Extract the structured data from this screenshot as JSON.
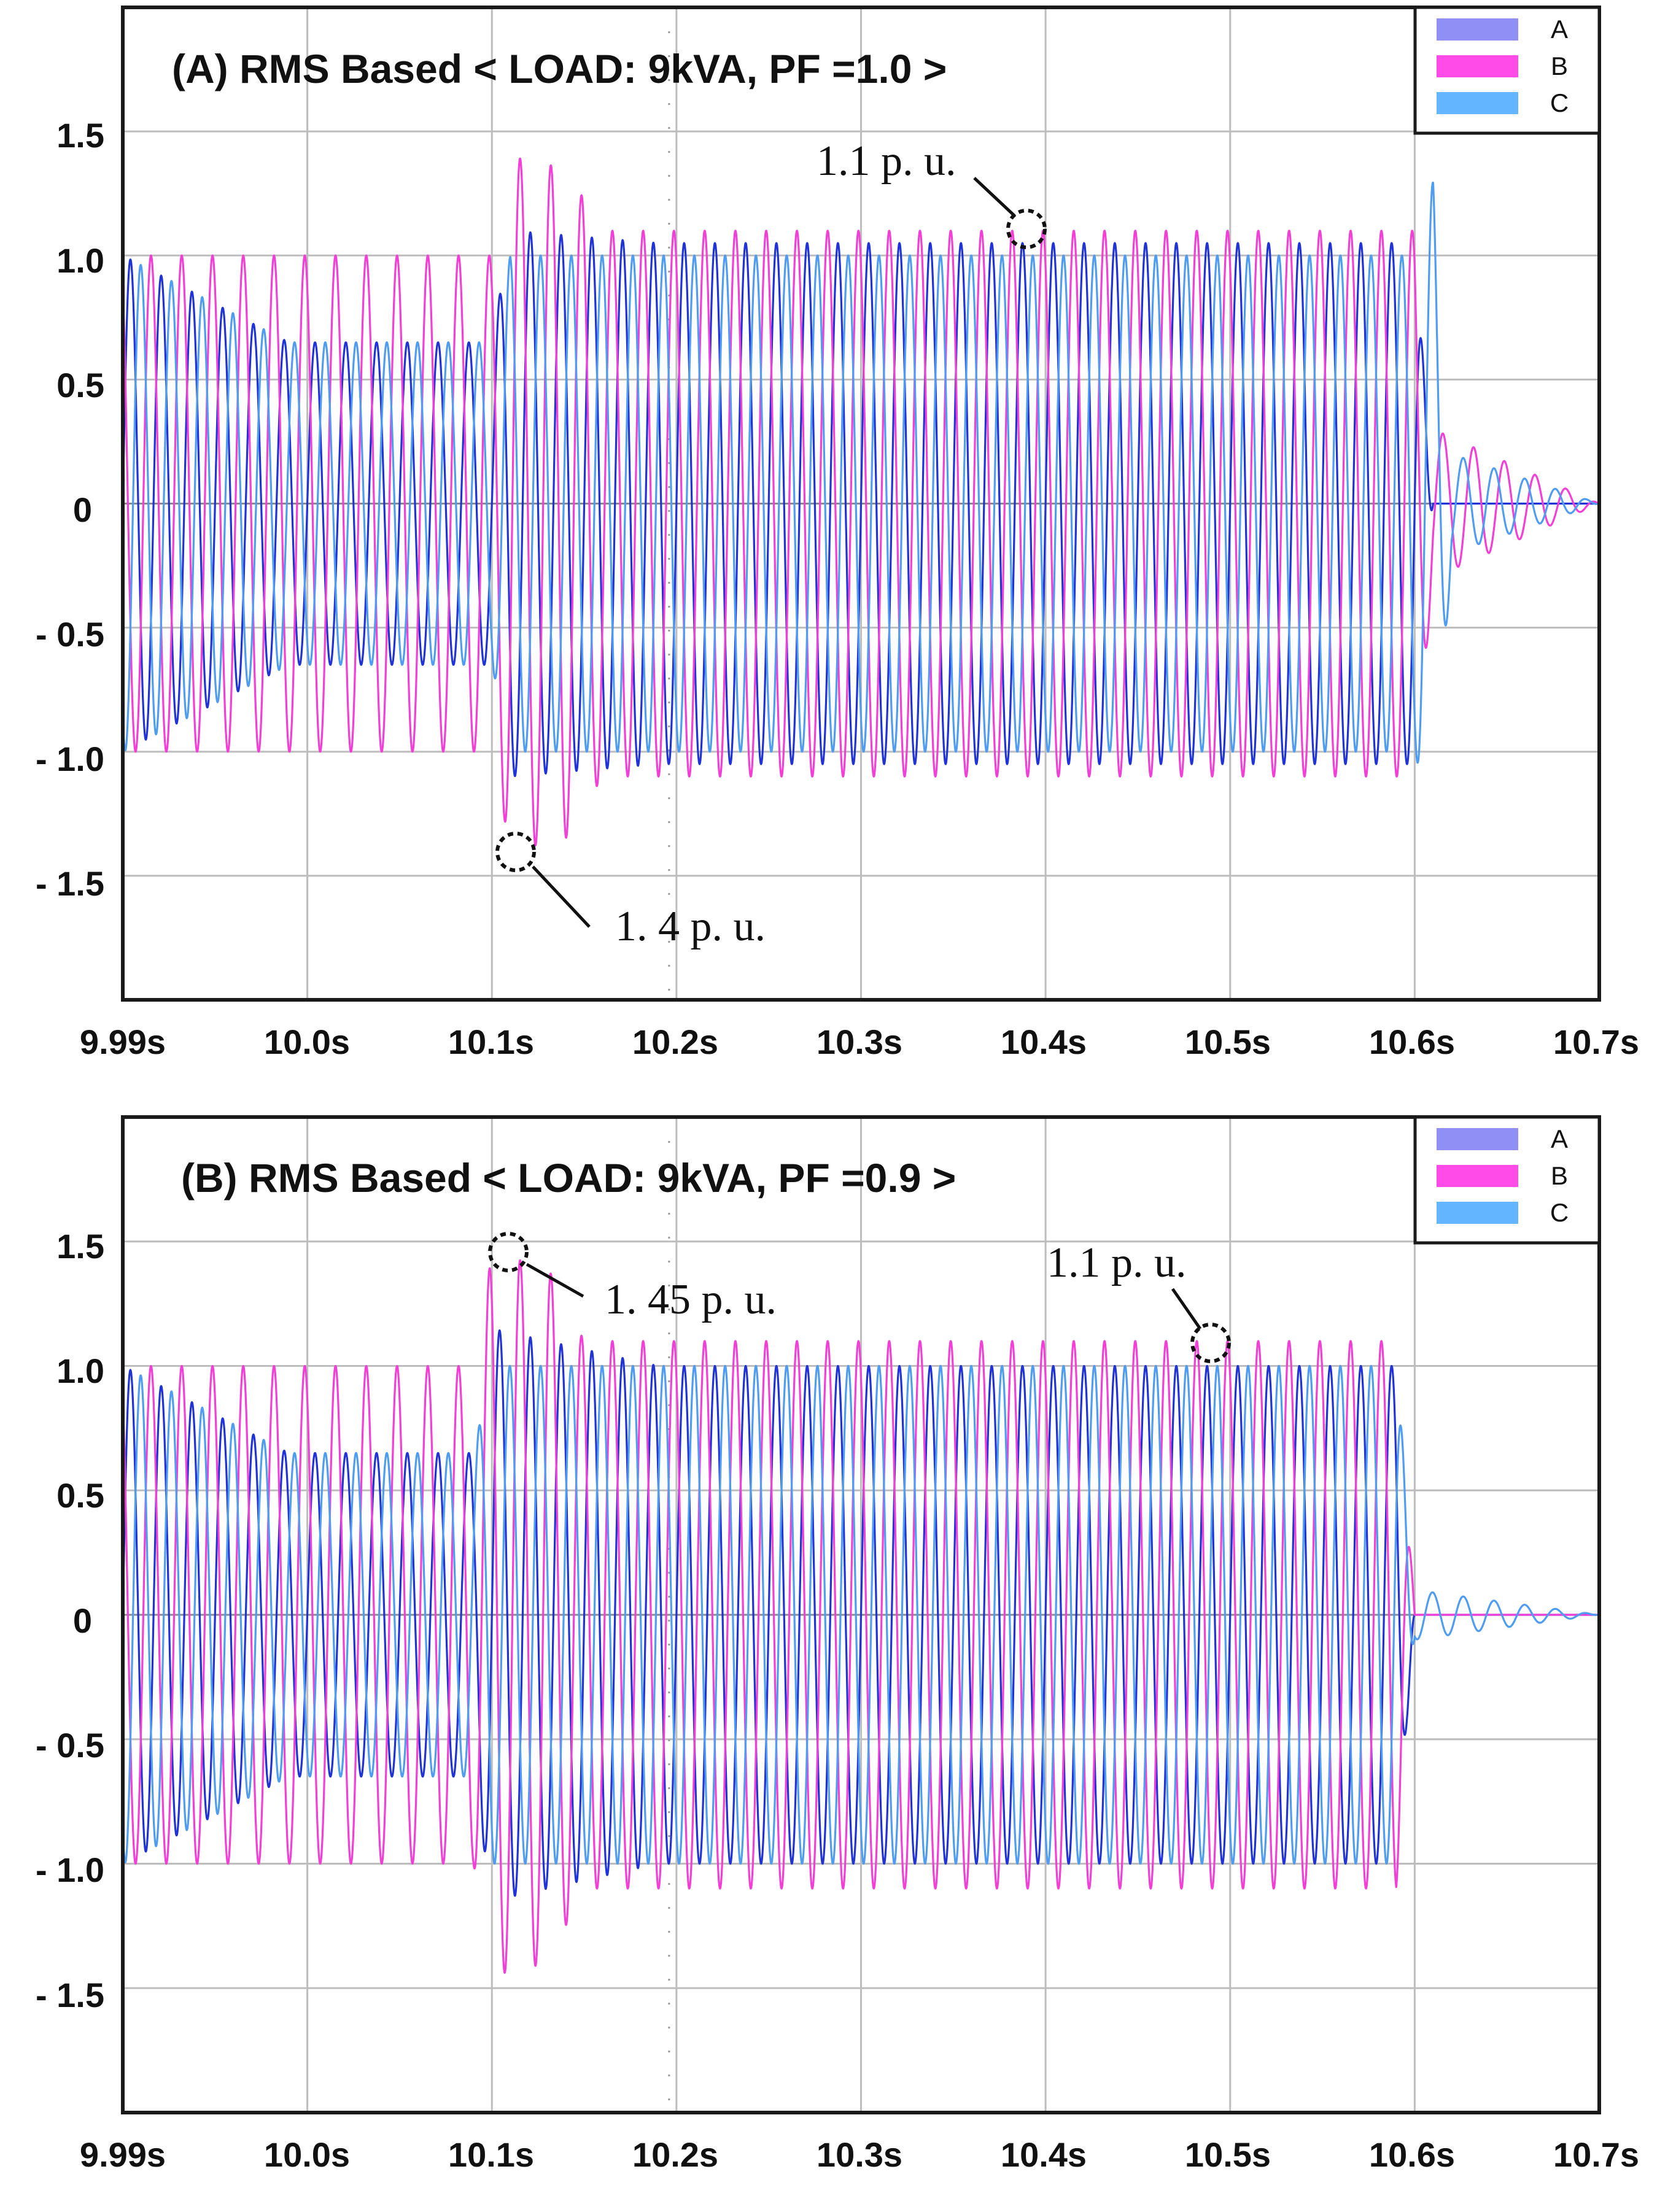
{
  "chart_data": [
    {
      "type": "line",
      "title": "(A) RMS Based < LOAD: 9kVA, PF =1.0 >",
      "x_ticks": [
        "9.99s",
        "10.0s",
        "10.1s",
        "10.2s",
        "10.3s",
        "10.4s",
        "10.5s",
        "10.6s",
        "10.7s"
      ],
      "y_ticks": [
        "1.5",
        "1.0",
        "0.5",
        "0",
        "- 0.5",
        "- 1.0",
        "- 1.5"
      ],
      "y_tick_values": [
        1.5,
        1.0,
        0.5,
        0,
        -0.5,
        -1.0,
        -1.5
      ],
      "xlim": [
        9.91,
        10.71
      ],
      "ylim": [
        -2.0,
        2.0
      ],
      "grid": true,
      "legend_position": "top-right",
      "series": [
        {
          "name": "A",
          "color": "#1f33d6",
          "legend_color": "#8f8ff5",
          "envelope": [
            [
              9.91,
              1.0
            ],
            [
              10.0,
              0.65
            ],
            [
              10.11,
              0.65
            ],
            [
              10.12,
              1.1
            ],
            [
              10.2,
              1.05
            ],
            [
              10.61,
              1.05
            ],
            [
              10.62,
              0.0
            ],
            [
              10.71,
              0.0
            ]
          ]
        },
        {
          "name": "B",
          "color": "#f23fd6",
          "legend_color": "#ff4ce8",
          "envelope": [
            [
              9.91,
              1.0
            ],
            [
              10.11,
              1.0
            ],
            [
              10.12,
              1.4
            ],
            [
              10.15,
              1.35
            ],
            [
              10.17,
              1.1
            ],
            [
              10.61,
              1.1
            ],
            [
              10.62,
              0.3
            ],
            [
              10.71,
              0.0
            ]
          ]
        },
        {
          "name": "C",
          "color": "#4f9cf0",
          "legend_color": "#63b5ff",
          "envelope": [
            [
              9.91,
              1.0
            ],
            [
              10.0,
              0.65
            ],
            [
              10.11,
              0.65
            ],
            [
              10.12,
              1.0
            ],
            [
              10.61,
              1.0
            ],
            [
              10.62,
              1.3
            ],
            [
              10.63,
              0.2
            ],
            [
              10.71,
              0.0
            ]
          ]
        }
      ],
      "annotations": [
        {
          "text": "1.1 p. u.",
          "x": 10.39,
          "y": 1.1
        },
        {
          "text": "1. 4 p. u.",
          "x": 10.12,
          "y": -1.4
        }
      ]
    },
    {
      "type": "line",
      "title": "(B) RMS Based < LOAD: 9kVA, PF =0.9 >",
      "x_ticks": [
        "9.99s",
        "10.0s",
        "10.1s",
        "10.2s",
        "10.3s",
        "10.4s",
        "10.5s",
        "10.6s",
        "10.7s"
      ],
      "y_ticks": [
        "1.5",
        "1.0",
        "0.5",
        "0",
        "- 0.5",
        "- 1.0",
        "- 1.5"
      ],
      "y_tick_values": [
        1.5,
        1.0,
        0.5,
        0,
        -0.5,
        -1.0,
        -1.5
      ],
      "xlim": [
        9.91,
        10.71
      ],
      "ylim": [
        -2.0,
        2.0
      ],
      "grid": true,
      "legend_position": "top-right",
      "series": [
        {
          "name": "A",
          "color": "#1f33d6",
          "legend_color": "#8f8ff5",
          "envelope": [
            [
              9.91,
              1.0
            ],
            [
              10.0,
              0.65
            ],
            [
              10.1,
              0.65
            ],
            [
              10.11,
              1.15
            ],
            [
              10.2,
              1.0
            ],
            [
              10.6,
              1.0
            ],
            [
              10.61,
              0.0
            ],
            [
              10.71,
              0.0
            ]
          ]
        },
        {
          "name": "B",
          "color": "#f23fd6",
          "legend_color": "#ff4ce8",
          "envelope": [
            [
              9.91,
              1.0
            ],
            [
              10.1,
              1.0
            ],
            [
              10.11,
              1.45
            ],
            [
              10.14,
              1.4
            ],
            [
              10.16,
              1.1
            ],
            [
              10.6,
              1.1
            ],
            [
              10.61,
              0.0
            ],
            [
              10.71,
              0.0
            ]
          ]
        },
        {
          "name": "C",
          "color": "#4f9cf0",
          "legend_color": "#63b5ff",
          "envelope": [
            [
              9.91,
              1.0
            ],
            [
              10.0,
              0.65
            ],
            [
              10.1,
              0.65
            ],
            [
              10.11,
              1.0
            ],
            [
              10.6,
              1.0
            ],
            [
              10.61,
              0.1
            ],
            [
              10.71,
              0.0
            ]
          ]
        }
      ],
      "annotations": [
        {
          "text": "1. 45 p. u.",
          "x": 10.11,
          "y": 1.45
        },
        {
          "text": "1.1 p. u.",
          "x": 10.49,
          "y": 1.1
        }
      ]
    }
  ]
}
